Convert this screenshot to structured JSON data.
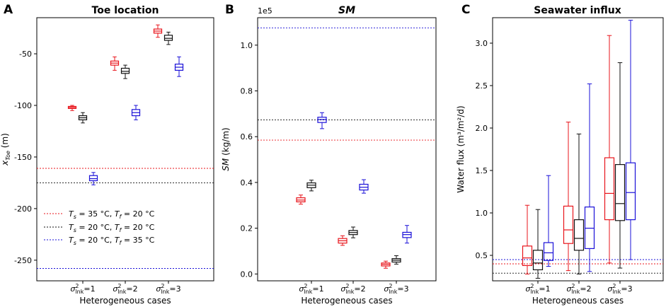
{
  "colors": {
    "red": "#e8141b",
    "black": "#111111",
    "blue": "#1a10d8"
  },
  "legend": [
    {
      "color_key": "red",
      "Ts": "35",
      "Tf": "20"
    },
    {
      "color_key": "black",
      "Ts": "20",
      "Tf": "20"
    },
    {
      "color_key": "blue",
      "Ts": "20",
      "Tf": "35"
    }
  ],
  "chart_data": [
    {
      "panel": "A",
      "type": "box",
      "title": "Toe location",
      "ylabel_var": "x",
      "ylabel_sub": "Toe",
      "ylabel_unit": "(m)",
      "xlabel": "Heterogeneous cases",
      "categories": [
        "1",
        "2",
        "3"
      ],
      "ylim": [
        -270,
        -15
      ],
      "yticks": [
        -250,
        -200,
        -150,
        -100,
        -50
      ],
      "reference_lines": [
        {
          "color_key": "red",
          "value": -161
        },
        {
          "color_key": "black",
          "value": -175
        },
        {
          "color_key": "blue",
          "value": -258
        }
      ],
      "series": [
        {
          "color_key": "red",
          "name": "Ts = 35 °C, Tf = 20 °C",
          "boxes": [
            [
              -105,
              -103,
              -102,
              -101,
              -100
            ],
            [
              -66,
              -61,
              -59,
              -57,
              -53
            ],
            [
              -34,
              -30,
              -28,
              -26,
              -22
            ]
          ]
        },
        {
          "color_key": "black",
          "name": "Ts = 20 °C, Tf = 20 °C",
          "boxes": [
            [
              -117,
              -114,
              -112,
              -110,
              -107
            ],
            [
              -74,
              -69,
              -67,
              -64,
              -61
            ],
            [
              -41,
              -37,
              -35,
              -32,
              -29
            ]
          ]
        },
        {
          "color_key": "blue",
          "name": "Ts = 20 °C, Tf = 35 °C",
          "boxes": [
            [
              -177,
              -173,
              -171,
              -168,
              -165
            ],
            [
              -114,
              -110,
              -107,
              -104,
              -100
            ],
            [
              -72,
              -66,
              -63,
              -60,
              -53
            ]
          ]
        }
      ]
    },
    {
      "panel": "B",
      "type": "box",
      "title": "SM",
      "scale_label": "1e5",
      "ylabel_var": "SM",
      "ylabel_unit": "(kg/m)",
      "xlabel": "Heterogeneous cases",
      "categories": [
        "1",
        "2",
        "3"
      ],
      "ylim": [
        -0.03,
        1.12
      ],
      "yticks": [
        0.0,
        0.2,
        0.4,
        0.6,
        0.8,
        1.0
      ],
      "ytick_labels": [
        "0.0",
        "0.2",
        "0.4",
        "0.6",
        "0.8",
        "1.0"
      ],
      "reference_lines": [
        {
          "color_key": "red",
          "value": 0.585
        },
        {
          "color_key": "black",
          "value": 0.673
        },
        {
          "color_key": "blue",
          "value": 1.075
        }
      ],
      "series": [
        {
          "color_key": "red",
          "name": "Ts = 35 °C, Tf = 20 °C",
          "boxes": [
            [
              0.305,
              0.315,
              0.323,
              0.333,
              0.345
            ],
            [
              0.125,
              0.135,
              0.145,
              0.155,
              0.167
            ],
            [
              0.025,
              0.035,
              0.042,
              0.048,
              0.056
            ]
          ]
        },
        {
          "color_key": "black",
          "name": "Ts = 20 °C, Tf = 20 °C",
          "boxes": [
            [
              0.363,
              0.377,
              0.388,
              0.398,
              0.41
            ],
            [
              0.158,
              0.172,
              0.181,
              0.19,
              0.205
            ],
            [
              0.043,
              0.052,
              0.06,
              0.067,
              0.08
            ]
          ]
        },
        {
          "color_key": "blue",
          "name": "Ts = 20 °C, Tf = 35 °C",
          "boxes": [
            [
              0.635,
              0.662,
              0.675,
              0.685,
              0.705
            ],
            [
              0.353,
              0.367,
              0.379,
              0.392,
              0.412
            ],
            [
              0.135,
              0.159,
              0.172,
              0.182,
              0.212
            ]
          ]
        }
      ]
    },
    {
      "panel": "C",
      "type": "box",
      "title": "Seawater influx",
      "ylabel_var": "Water flux",
      "ylabel_unit": "(m³/m²/d)",
      "xlabel": "Heterogeneous cases",
      "categories": [
        "1",
        "2",
        "3"
      ],
      "ylim": [
        0.2,
        3.3
      ],
      "yticks": [
        0.5,
        1.0,
        1.5,
        2.0,
        2.5,
        3.0
      ],
      "ytick_labels": [
        "0.5",
        "1.0",
        "1.5",
        "2.0",
        "2.5",
        "3.0"
      ],
      "reference_lines": [
        {
          "color_key": "red",
          "value": 0.4
        },
        {
          "color_key": "black",
          "value": 0.29
        },
        {
          "color_key": "blue",
          "value": 0.45
        }
      ],
      "series": [
        {
          "color_key": "red",
          "name": "Ts = 35 °C, Tf = 20 °C",
          "boxes": [
            [
              0.28,
              0.38,
              0.47,
              0.61,
              1.09
            ],
            [
              0.32,
              0.64,
              0.8,
              1.08,
              2.07
            ],
            [
              0.41,
              0.92,
              1.23,
              1.65,
              3.09
            ]
          ]
        },
        {
          "color_key": "black",
          "name": "Ts = 20 °C, Tf = 20 °C",
          "boxes": [
            [
              0.23,
              0.33,
              0.41,
              0.56,
              1.04
            ],
            [
              0.28,
              0.56,
              0.7,
              0.92,
              1.93
            ],
            [
              0.35,
              0.91,
              1.11,
              1.57,
              2.77
            ]
          ]
        },
        {
          "color_key": "blue",
          "name": "Ts = 20 °C, Tf = 35 °C",
          "boxes": [
            [
              0.37,
              0.44,
              0.53,
              0.65,
              1.44
            ],
            [
              0.31,
              0.58,
              0.82,
              1.07,
              2.52
            ],
            [
              0.45,
              0.92,
              1.24,
              1.59,
              3.27
            ]
          ]
        }
      ]
    }
  ]
}
